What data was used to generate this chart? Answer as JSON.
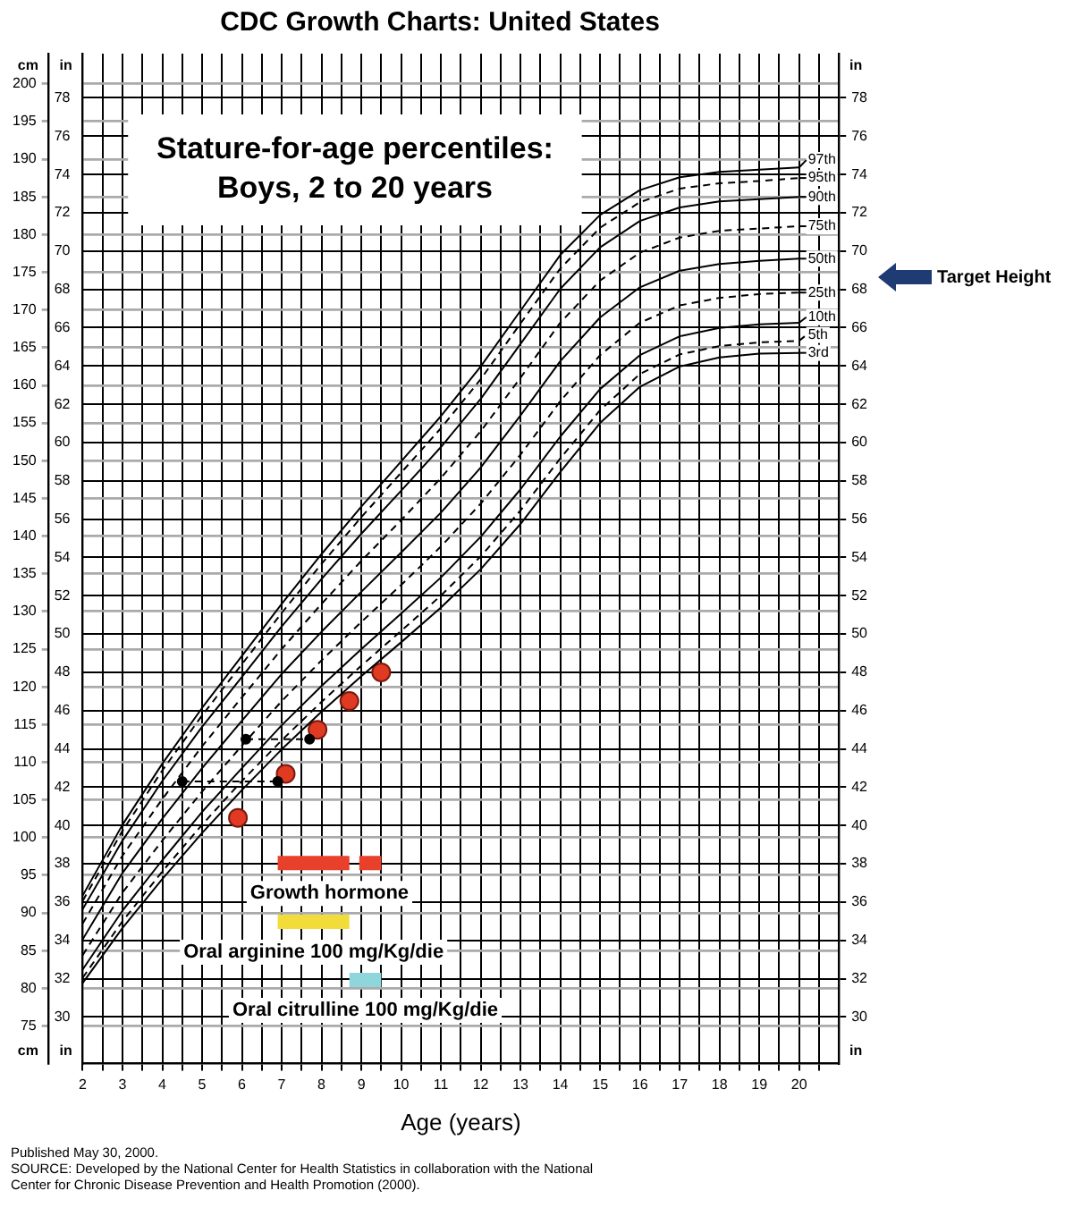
{
  "chart_data": {
    "type": "line",
    "title": "CDC Growth Charts: United States",
    "subtitle": "Stature-for-age percentiles: Boys, 2 to 20 years",
    "xlabel": "Age (years)",
    "ylabel": "cm",
    "y2label": "in",
    "y3label": "in",
    "x": [
      2,
      3,
      4,
      5,
      6,
      7,
      8,
      9,
      10,
      11,
      12,
      13,
      14,
      15,
      16,
      17,
      18,
      19,
      20
    ],
    "xlim": [
      2,
      21
    ],
    "xticks": [
      2,
      {
        "value": 2.5,
        "label": null
      },
      3,
      {
        "value": 3.5,
        "label": null
      },
      4,
      {
        "value": 4.5,
        "label": null
      },
      5,
      {
        "value": 5.5,
        "label": null
      },
      6,
      {
        "value": 6.5,
        "label": null
      },
      7,
      {
        "value": 7.5,
        "label": null
      },
      8,
      {
        "value": 8.5,
        "label": null
      },
      9,
      {
        "value": 9.5,
        "label": null
      },
      10,
      {
        "value": 10.5,
        "label": null
      },
      11,
      {
        "value": 11.5,
        "label": null
      },
      12,
      {
        "value": 12.5,
        "label": null
      },
      13,
      {
        "value": 13.5,
        "label": null
      },
      14,
      {
        "value": 14.5,
        "label": null
      },
      15,
      {
        "value": 15.5,
        "label": null
      },
      16,
      {
        "value": 16.5,
        "label": null
      },
      17,
      {
        "value": 17.5,
        "label": null
      },
      18,
      {
        "value": 18.5,
        "label": null
      },
      19,
      {
        "value": 19.5,
        "label": null
      },
      20,
      {
        "value": 20.5,
        "label": null
      }
    ],
    "ylim": [
      70,
      204
    ],
    "yticks": [
      75,
      80,
      85,
      90,
      95,
      100,
      105,
      110,
      115,
      120,
      125,
      130,
      135,
      140,
      145,
      150,
      155,
      160,
      165,
      170,
      175,
      180,
      185,
      190,
      195,
      200
    ],
    "y2lim": [
      27.56,
      80.31
    ],
    "y2ticks": [
      30,
      32,
      34,
      36,
      38,
      40,
      42,
      44,
      46,
      48,
      50,
      52,
      54,
      56,
      58,
      60,
      62,
      64,
      66,
      68,
      70,
      72,
      74,
      76,
      78
    ],
    "y3lim": [
      27.56,
      80.31
    ],
    "y3ticks": [
      30,
      32,
      34,
      36,
      38,
      40,
      42,
      44,
      46,
      48,
      50,
      52,
      54,
      56,
      58,
      60,
      62,
      64,
      66,
      68,
      70,
      72,
      74,
      76,
      78
    ],
    "grid": true,
    "legend": "right",
    "series": [
      {
        "name": "3rd",
        "color": "#000000",
        "marker": "none",
        "line_style": "solid",
        "values": [
          80.7,
          88.0,
          94.5,
          100.6,
          106.3,
          111.7,
          116.7,
          121.4,
          125.9,
          130.5,
          135.6,
          141.6,
          148.5,
          155.0,
          159.8,
          162.5,
          163.7,
          164.2,
          164.3
        ]
      },
      {
        "name": "5th",
        "color": "#000000",
        "marker": "none",
        "line_style": "dashed",
        "values": [
          81.4,
          88.9,
          95.5,
          101.7,
          107.5,
          112.9,
          118.0,
          122.8,
          127.4,
          132.1,
          137.3,
          143.4,
          150.3,
          156.7,
          161.5,
          164.1,
          165.2,
          165.7,
          165.9
        ]
      },
      {
        "name": "10th",
        "color": "#000000",
        "marker": "none",
        "line_style": "solid",
        "values": [
          82.5,
          90.3,
          97.0,
          103.4,
          109.2,
          114.9,
          120.1,
          125.0,
          129.7,
          134.5,
          139.9,
          146.2,
          153.2,
          159.5,
          164.0,
          166.5,
          167.6,
          168.1,
          168.3
        ]
      },
      {
        "name": "25th",
        "color": "#000000",
        "marker": "none",
        "line_style": "dashed",
        "values": [
          84.4,
          92.7,
          99.6,
          106.1,
          112.2,
          118.1,
          123.5,
          128.6,
          133.5,
          138.6,
          144.3,
          150.8,
          157.9,
          164.0,
          168.3,
          170.6,
          171.6,
          172.1,
          172.3
        ]
      },
      {
        "name": "50th",
        "color": "#000000",
        "marker": "none",
        "line_style": "solid",
        "values": [
          86.5,
          95.3,
          102.5,
          109.2,
          115.5,
          121.7,
          127.3,
          132.6,
          137.8,
          143.1,
          149.1,
          156.0,
          163.2,
          169.0,
          173.0,
          175.2,
          176.1,
          176.5,
          176.8
        ]
      },
      {
        "name": "75th",
        "color": "#000000",
        "marker": "none",
        "line_style": "dashed",
        "values": [
          88.6,
          97.6,
          105.1,
          112.1,
          118.6,
          125.0,
          131.0,
          136.7,
          142.1,
          147.7,
          153.9,
          161.0,
          168.3,
          173.9,
          177.6,
          179.6,
          180.5,
          180.8,
          181.1
        ]
      },
      {
        "name": "90th",
        "color": "#000000",
        "marker": "none",
        "line_style": "solid",
        "values": [
          90.5,
          99.6,
          107.5,
          114.7,
          121.3,
          128.0,
          134.3,
          140.3,
          146.0,
          151.8,
          158.2,
          165.5,
          172.8,
          178.3,
          181.8,
          183.6,
          184.4,
          184.7,
          185.0
        ]
      },
      {
        "name": "95th",
        "color": "#000000",
        "marker": "none",
        "line_style": "dashed",
        "values": [
          91.6,
          100.9,
          108.9,
          116.2,
          123.0,
          129.8,
          136.3,
          142.5,
          148.4,
          154.3,
          160.8,
          168.2,
          175.5,
          180.9,
          184.3,
          186.1,
          186.8,
          187.1,
          187.5
        ]
      },
      {
        "name": "97th",
        "color": "#000000",
        "marker": "none",
        "line_style": "solid",
        "values": [
          92.3,
          101.7,
          109.8,
          117.2,
          124.1,
          131.0,
          137.6,
          143.9,
          149.9,
          155.9,
          162.5,
          169.9,
          177.3,
          182.6,
          185.9,
          187.6,
          188.3,
          188.6,
          188.9
        ]
      },
      {
        "color": "#000000",
        "marker": "circle",
        "line_style": "dashed",
        "axis": "y2",
        "x": [
          4.5,
          6.9
        ],
        "values": [
          42.3,
          42.3
        ]
      },
      {
        "color": "#000000",
        "marker": "circle",
        "line_style": "dashed",
        "axis": "y2",
        "x": [
          6.1,
          7.7
        ],
        "values": [
          44.5,
          44.5
        ]
      },
      {
        "type": "scatter",
        "color": "#e03a22",
        "marker": "circle",
        "axis": "y2",
        "x": [
          5.9,
          7.1,
          7.9,
          8.7,
          9.5
        ],
        "values": [
          40.4,
          42.7,
          45.0,
          46.5,
          48.0
        ]
      },
      {
        "name": "Growth hormone",
        "color": "#e8402a",
        "marker": "none",
        "line_style": "solid",
        "x": [
          6.9,
          8.7,
          8.8,
          8.95,
          9.5
        ],
        "values": [
          96.6,
          96.6,
          null,
          96.6,
          96.6
        ]
      },
      {
        "name": "Oral arginine 100 mg/Kg/die",
        "color": "#f2dc3a",
        "marker": "none",
        "line_style": "solid",
        "x": [
          6.9,
          8.7
        ],
        "values": [
          88.8,
          88.8
        ]
      },
      {
        "name": "Oral citrulline 100 mg/Kg/die",
        "color": "#8fd6dc",
        "marker": "none",
        "line_style": "solid",
        "x": [
          8.7,
          9.5
        ],
        "values": [
          81.1,
          81.1
        ]
      }
    ],
    "annotations": [
      "Target Height",
      "Published May 30, 2000.",
      "SOURCE: Developed by the National Center for Health Statistics in collaboration with the National Center for Chronic Disease Prevention and Health Promotion (2000)."
    ]
  }
}
